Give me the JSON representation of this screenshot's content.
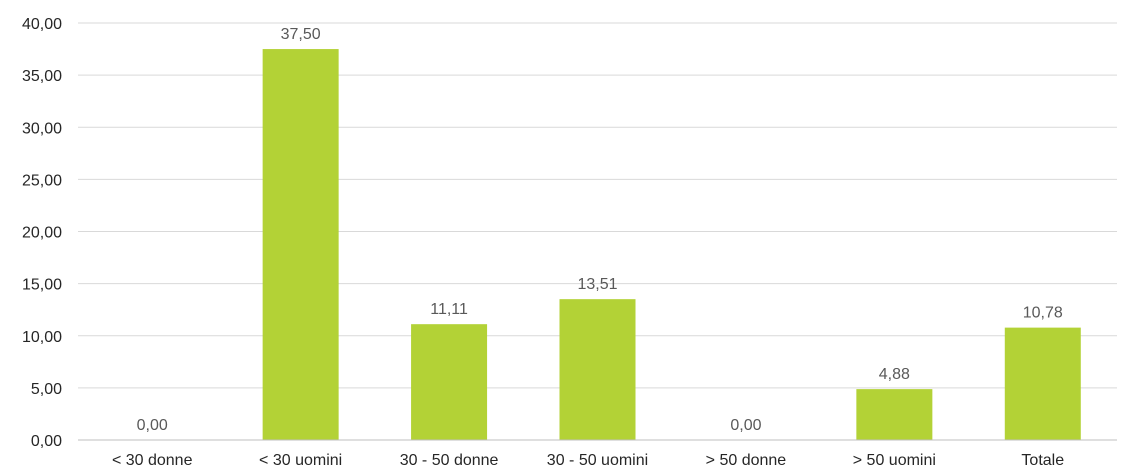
{
  "chart_data": {
    "type": "bar",
    "title": "",
    "xlabel": "",
    "ylabel": "",
    "categories": [
      "< 30 donne",
      "< 30 uomini",
      "30 - 50 donne",
      "30 - 50 uomini",
      "> 50 donne",
      "> 50 uomini",
      "Totale"
    ],
    "values": [
      0.0,
      37.5,
      11.11,
      13.51,
      0.0,
      4.88,
      10.78
    ],
    "data_labels": [
      "0,00",
      "37,50",
      "11,11",
      "13,51",
      "0,00",
      "4,88",
      "10,78"
    ],
    "ylim": [
      0,
      40
    ],
    "yticks": [
      0,
      5,
      10,
      15,
      20,
      25,
      30,
      35,
      40
    ],
    "ytick_labels": [
      "0,00",
      "5,00",
      "10,00",
      "15,00",
      "20,00",
      "25,00",
      "30,00",
      "35,00",
      "40,00"
    ],
    "grid": true,
    "legend": "none",
    "bar_color": "#b3d236",
    "grid_color": "#d9d9d9",
    "axis_color": "#bfbfbf"
  }
}
